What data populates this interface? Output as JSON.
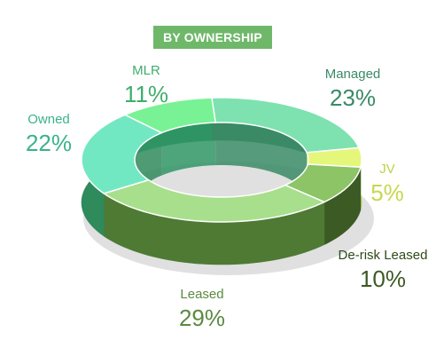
{
  "title": "BY OWNERSHIP",
  "chart_data": {
    "type": "pie",
    "title": "BY OWNERSHIP",
    "donut": true,
    "slices": [
      {
        "label": "Managed",
        "value": 23,
        "display": "23%",
        "color": "#3a8a66",
        "top_color": "#7ee2b0"
      },
      {
        "label": "JV",
        "value": 5,
        "display": "5%",
        "color": "#bcd24a",
        "top_color": "#e4f77a"
      },
      {
        "label": "De-risk Leased",
        "value": 10,
        "display": "10%",
        "color": "#3c5a24",
        "top_color": "#8cc466"
      },
      {
        "label": "Leased",
        "value": 29,
        "display": "29%",
        "color": "#4e7a34",
        "top_color": "#a8df8c"
      },
      {
        "label": "Owned",
        "value": 22,
        "display": "22%",
        "color": "#2f8a5c",
        "top_color": "#72e8c2"
      },
      {
        "label": "MLR",
        "value": 11,
        "display": "11%",
        "color": "#2f9464",
        "top_color": "#78f294"
      }
    ]
  }
}
